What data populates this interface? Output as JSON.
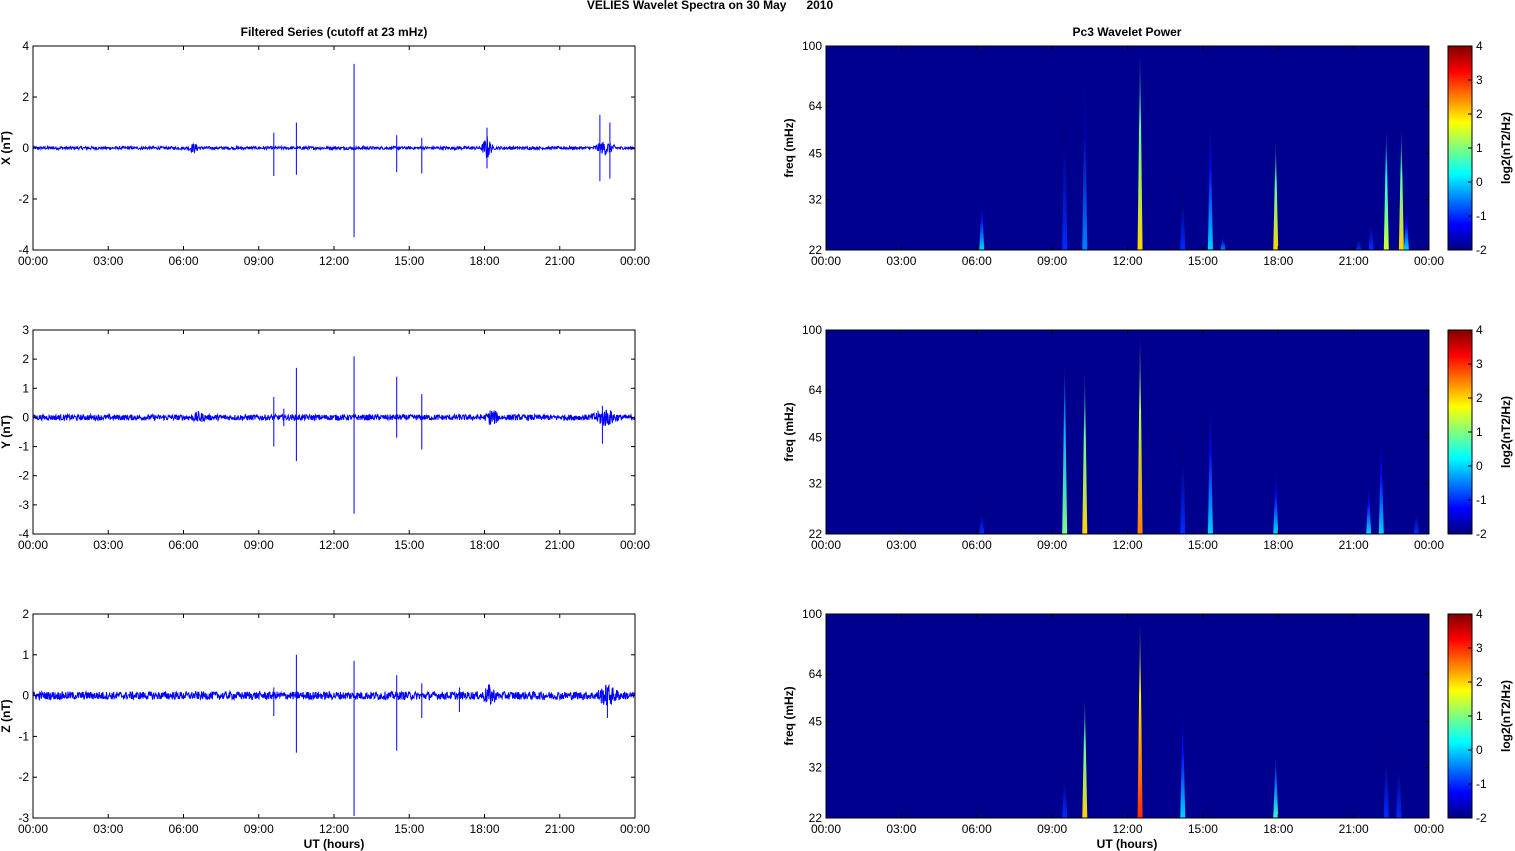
{
  "figure": {
    "title": "VELIES Wavelet Spectra on 30 May      2010",
    "left_column_title": "Filtered Series (cutoff at 23 mHz)",
    "right_column_title": "Pc3 Wavelet Power",
    "xlabel": "UT (hours)"
  },
  "colors": {
    "trace": "#0000ff",
    "spectrogram_background": "#00008f",
    "colormap": [
      "#00007f",
      "#0000ff",
      "#007fff",
      "#00ffff",
      "#7fff7f",
      "#ffff00",
      "#ff7f00",
      "#ff0000",
      "#7f0000"
    ]
  },
  "chart_data": [
    {
      "type": "line",
      "component": "X",
      "ylabel": "X (nT)",
      "xlim": [
        0,
        24
      ],
      "ylim": [
        -4,
        4
      ],
      "x_ticks": [
        "00:00",
        "03:00",
        "06:00",
        "09:00",
        "12:00",
        "15:00",
        "18:00",
        "21:00",
        "00:00"
      ],
      "y_ticks": [
        "4",
        "2",
        "0",
        "-2",
        "-4"
      ],
      "y_tick_values": [
        4,
        2,
        0,
        -2,
        -4
      ],
      "noise_amplitude": 0.06,
      "bursts": [
        {
          "t": 6.4,
          "amp": 0.15,
          "width": 0.6
        },
        {
          "t": 18.1,
          "amp": 0.45,
          "width": 0.5
        },
        {
          "t": 22.8,
          "amp": 0.25,
          "width": 1.0
        }
      ],
      "spikes": [
        {
          "t": 9.6,
          "up": 0.6,
          "down": -1.1
        },
        {
          "t": 10.5,
          "up": 1.0,
          "down": -1.05
        },
        {
          "t": 12.8,
          "up": 3.3,
          "down": -3.5
        },
        {
          "t": 14.5,
          "up": 0.5,
          "down": -0.95
        },
        {
          "t": 15.5,
          "up": 0.4,
          "down": -1.0
        },
        {
          "t": 18.1,
          "up": 0.8,
          "down": -0.8
        },
        {
          "t": 22.6,
          "up": 1.3,
          "down": -1.3
        },
        {
          "t": 23.0,
          "up": 1.0,
          "down": -1.2
        }
      ]
    },
    {
      "type": "heatmap",
      "component": "X",
      "ylabel": "freq (mHz)",
      "xlim": [
        0,
        24
      ],
      "y_scale": "log",
      "ylim": [
        22,
        100
      ],
      "x_ticks": [
        "00:00",
        "03:00",
        "06:00",
        "09:00",
        "12:00",
        "15:00",
        "18:00",
        "21:00",
        "00:00"
      ],
      "y_ticks": [
        "100",
        "64",
        "45",
        "32",
        "22"
      ],
      "y_tick_values": [
        100,
        64,
        45,
        32,
        22
      ],
      "colorbar": {
        "label": "log2(nT2/Hz)",
        "range": [
          -2,
          4
        ],
        "ticks": [
          "4",
          "3",
          "2",
          "1",
          "0",
          "-1",
          "-2"
        ]
      },
      "features": [
        {
          "t": 6.2,
          "top": 32,
          "power": 0
        },
        {
          "t": 9.5,
          "top": 85,
          "power": -1
        },
        {
          "t": 10.3,
          "top": 90,
          "power": -0.5
        },
        {
          "t": 12.5,
          "top": 100,
          "power": 2
        },
        {
          "t": 14.2,
          "top": 40,
          "power": -1
        },
        {
          "t": 15.3,
          "top": 60,
          "power": 0
        },
        {
          "t": 15.8,
          "top": 25,
          "power": -0.5
        },
        {
          "t": 17.9,
          "top": 50,
          "power": 2
        },
        {
          "t": 21.2,
          "top": 25,
          "power": -1
        },
        {
          "t": 21.7,
          "top": 30,
          "power": -1
        },
        {
          "t": 22.3,
          "top": 55,
          "power": 1.5
        },
        {
          "t": 22.9,
          "top": 55,
          "power": 2
        },
        {
          "t": 23.1,
          "top": 30,
          "power": 0
        }
      ]
    },
    {
      "type": "line",
      "component": "Y",
      "ylabel": "Y (nT)",
      "xlim": [
        0,
        24
      ],
      "ylim": [
        -4,
        3
      ],
      "x_ticks": [
        "00:00",
        "03:00",
        "06:00",
        "09:00",
        "12:00",
        "15:00",
        "18:00",
        "21:00",
        "00:00"
      ],
      "y_ticks": [
        "3",
        "2",
        "1",
        "0",
        "-1",
        "-2",
        "-3",
        "-4"
      ],
      "y_tick_values": [
        3,
        2,
        1,
        0,
        -1,
        -2,
        -3,
        -4
      ],
      "noise_amplitude": 0.1,
      "bursts": [
        {
          "t": 6.6,
          "amp": 0.12,
          "width": 0.6
        },
        {
          "t": 18.3,
          "amp": 0.25,
          "width": 0.6
        },
        {
          "t": 22.8,
          "amp": 0.25,
          "width": 1.2
        }
      ],
      "spikes": [
        {
          "t": 9.6,
          "up": 0.7,
          "down": -1.0
        },
        {
          "t": 10.0,
          "up": 0.3,
          "down": -0.3
        },
        {
          "t": 10.5,
          "up": 1.7,
          "down": -1.5
        },
        {
          "t": 12.8,
          "up": 2.1,
          "down": -3.3
        },
        {
          "t": 14.5,
          "up": 1.4,
          "down": -0.7
        },
        {
          "t": 15.5,
          "up": 0.8,
          "down": -1.1
        },
        {
          "t": 22.7,
          "up": 0.4,
          "down": -0.9
        }
      ]
    },
    {
      "type": "heatmap",
      "component": "Y",
      "ylabel": "freq (mHz)",
      "xlim": [
        0,
        24
      ],
      "y_scale": "log",
      "ylim": [
        22,
        100
      ],
      "x_ticks": [
        "00:00",
        "03:00",
        "06:00",
        "09:00",
        "12:00",
        "15:00",
        "18:00",
        "21:00",
        "00:00"
      ],
      "y_ticks": [
        "100",
        "64",
        "45",
        "32",
        "22"
      ],
      "y_tick_values": [
        100,
        64,
        45,
        32,
        22
      ],
      "colorbar": {
        "label": "log2(nT2/Hz)",
        "range": [
          -2,
          4
        ],
        "ticks": [
          "4",
          "3",
          "2",
          "1",
          "0",
          "-1",
          "-2"
        ]
      },
      "features": [
        {
          "t": 6.2,
          "top": 28,
          "power": -1
        },
        {
          "t": 9.5,
          "top": 80,
          "power": 1
        },
        {
          "t": 10.3,
          "top": 75,
          "power": 2
        },
        {
          "t": 12.5,
          "top": 100,
          "power": 2.5
        },
        {
          "t": 14.2,
          "top": 55,
          "power": -1
        },
        {
          "t": 15.3,
          "top": 60,
          "power": 0
        },
        {
          "t": 17.9,
          "top": 35,
          "power": 0
        },
        {
          "t": 21.6,
          "top": 32,
          "power": 0
        },
        {
          "t": 22.1,
          "top": 45,
          "power": 0
        },
        {
          "t": 23.5,
          "top": 28,
          "power": -1
        }
      ]
    },
    {
      "type": "line",
      "component": "Z",
      "ylabel": "Z (nT)",
      "xlim": [
        0,
        24
      ],
      "ylim": [
        -3,
        2
      ],
      "x_ticks": [
        "00:00",
        "03:00",
        "06:00",
        "09:00",
        "12:00",
        "15:00",
        "18:00",
        "21:00",
        "00:00"
      ],
      "y_ticks": [
        "2",
        "1",
        "0",
        "-1",
        "-2",
        "-3"
      ],
      "y_tick_values": [
        2,
        1,
        0,
        -1,
        -2,
        -3
      ],
      "noise_amplitude": 0.1,
      "bursts": [
        {
          "t": 18.2,
          "amp": 0.2,
          "width": 0.6
        },
        {
          "t": 22.9,
          "amp": 0.2,
          "width": 1.0
        }
      ],
      "spikes": [
        {
          "t": 9.6,
          "up": 0.2,
          "down": -0.5
        },
        {
          "t": 10.5,
          "up": 1.0,
          "down": -1.4
        },
        {
          "t": 12.8,
          "up": 0.85,
          "down": -2.95
        },
        {
          "t": 14.5,
          "up": 0.5,
          "down": -1.35
        },
        {
          "t": 15.5,
          "up": 0.3,
          "down": -0.55
        },
        {
          "t": 17.0,
          "up": 0.2,
          "down": -0.4
        },
        {
          "t": 22.9,
          "up": 0.2,
          "down": -0.55
        }
      ]
    },
    {
      "type": "heatmap",
      "component": "Z",
      "ylabel": "freq (mHz)",
      "xlim": [
        0,
        24
      ],
      "y_scale": "log",
      "ylim": [
        22,
        100
      ],
      "x_ticks": [
        "00:00",
        "03:00",
        "06:00",
        "09:00",
        "12:00",
        "15:00",
        "18:00",
        "21:00",
        "00:00"
      ],
      "y_ticks": [
        "100",
        "64",
        "45",
        "32",
        "22"
      ],
      "y_tick_values": [
        100,
        64,
        45,
        32,
        22
      ],
      "colorbar": {
        "label": "log2(nT2/Hz)",
        "range": [
          -2,
          4
        ],
        "ticks": [
          "4",
          "3",
          "2",
          "1",
          "0",
          "-1",
          "-2"
        ]
      },
      "features": [
        {
          "t": 9.5,
          "top": 35,
          "power": -1
        },
        {
          "t": 10.3,
          "top": 55,
          "power": 2
        },
        {
          "t": 12.5,
          "top": 100,
          "power": 3
        },
        {
          "t": 14.2,
          "top": 50,
          "power": 0
        },
        {
          "t": 17.9,
          "top": 35,
          "power": 0.5
        },
        {
          "t": 22.3,
          "top": 45,
          "power": -1
        },
        {
          "t": 22.8,
          "top": 40,
          "power": -1
        }
      ]
    }
  ]
}
